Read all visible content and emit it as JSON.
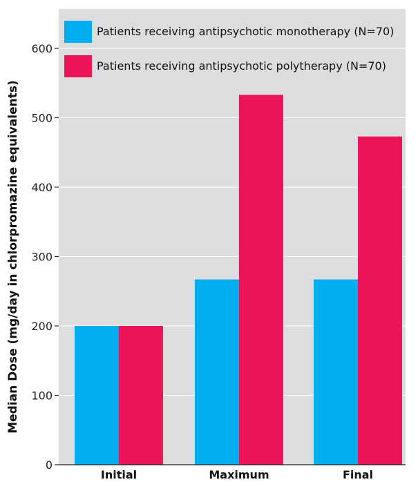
{
  "chart_data": {
    "type": "bar",
    "categories": [
      "Initial",
      "Maximum",
      "Final"
    ],
    "series": [
      {
        "name": "Patients receiving antipsychotic monotherapy (N=70)",
        "color": "#00aeef",
        "values": [
          200,
          267,
          267
        ]
      },
      {
        "name": "Patients receiving antipsychotic polytherapy (N=70)",
        "color": "#ed1459",
        "values": [
          200,
          533,
          473
        ]
      }
    ],
    "ylabel": "Median Dose (mg/day in chlorpromazine equivalents)",
    "xlabel": "",
    "ylim": [
      0,
      600
    ],
    "yticks": [
      0,
      100,
      200,
      300,
      400,
      500,
      600
    ],
    "grid": true,
    "legend": "top-left",
    "plot_background": "#dcddde"
  }
}
